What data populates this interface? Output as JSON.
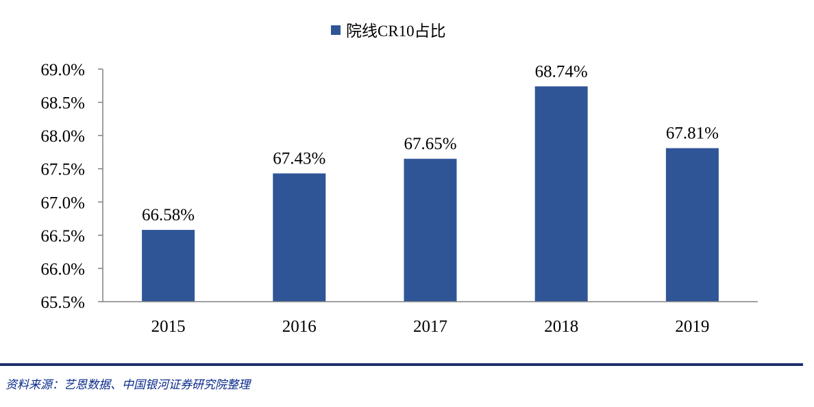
{
  "chart_data": {
    "type": "bar",
    "categories": [
      "2015",
      "2016",
      "2017",
      "2018",
      "2019"
    ],
    "series": [
      {
        "name": "院线CR10占比",
        "values": [
          66.58,
          67.43,
          67.65,
          68.74,
          67.81
        ]
      }
    ],
    "data_labels": [
      "66.58%",
      "67.43%",
      "67.65%",
      "68.74%",
      "67.81%"
    ],
    "y_ticks": [
      "65.5%",
      "66.0%",
      "66.5%",
      "67.0%",
      "67.5%",
      "68.0%",
      "68.5%",
      "69.0%"
    ],
    "ylim": [
      65.5,
      69.0
    ],
    "y_unit": "%",
    "legend_position": "top-center",
    "grid": false,
    "bar_color": "#2f5597"
  },
  "source_note": "资料来源：艺恩数据、中国银河证券研究院整理"
}
